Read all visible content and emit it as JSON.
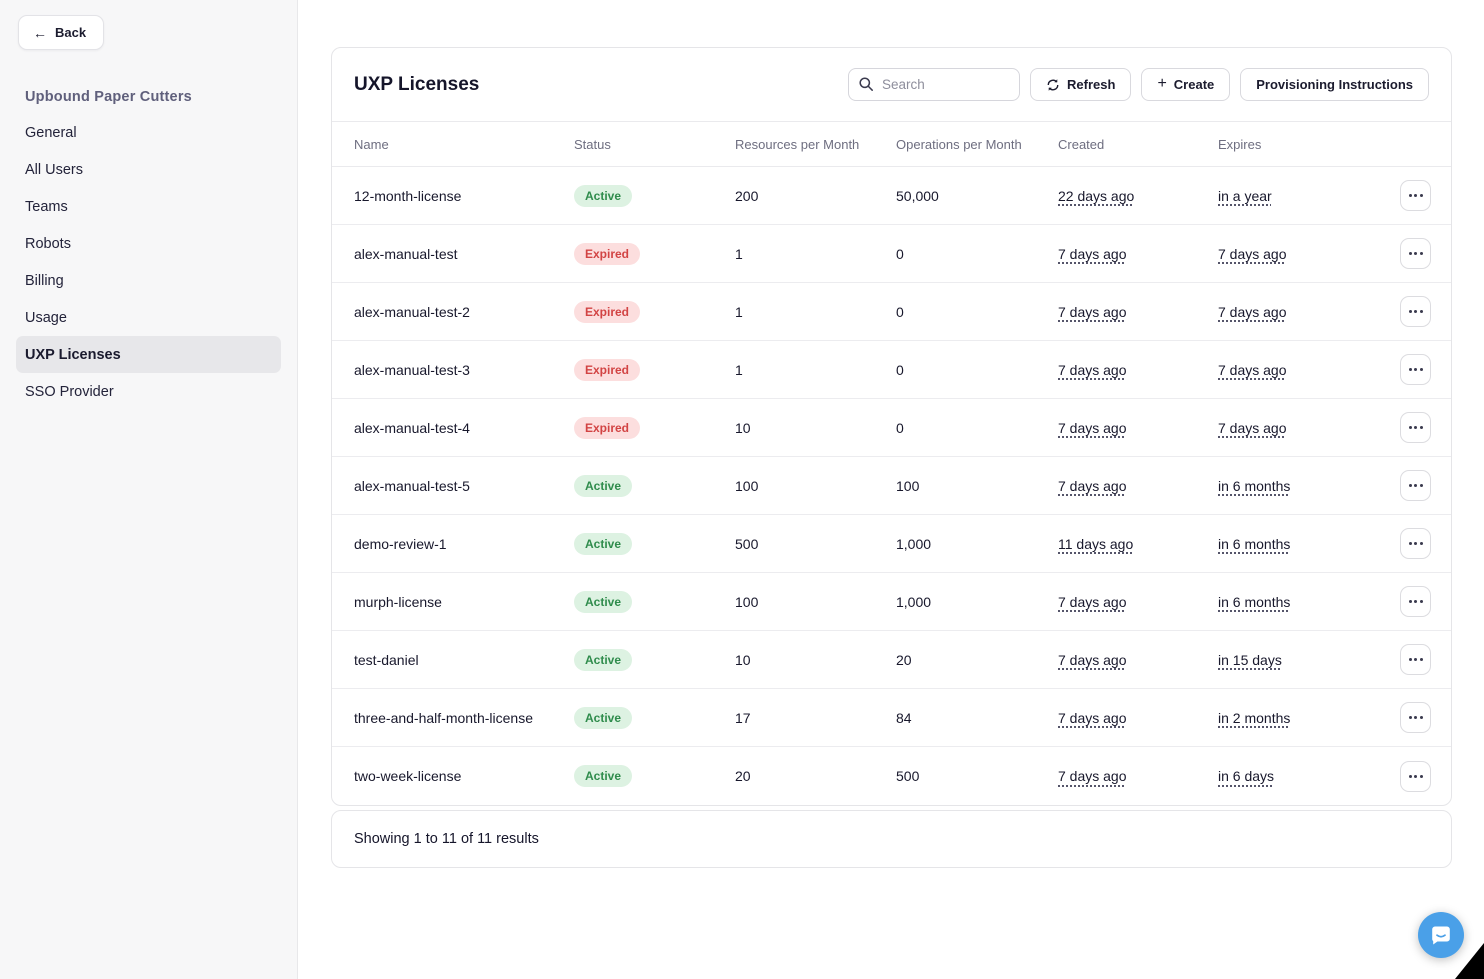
{
  "sidebar": {
    "back_label": "Back",
    "org_title": "Upbound Paper Cutters",
    "items": [
      {
        "label": "General",
        "selected": false
      },
      {
        "label": "All Users",
        "selected": false
      },
      {
        "label": "Teams",
        "selected": false
      },
      {
        "label": "Robots",
        "selected": false
      },
      {
        "label": "Billing",
        "selected": false
      },
      {
        "label": "Usage",
        "selected": false
      },
      {
        "label": "UXP Licenses",
        "selected": true
      },
      {
        "label": "SSO Provider",
        "selected": false
      }
    ]
  },
  "header": {
    "title": "UXP Licenses",
    "search_placeholder": "Search",
    "refresh_label": "Refresh",
    "create_label": "Create",
    "provisioning_label": "Provisioning Instructions"
  },
  "table": {
    "columns": [
      "Name",
      "Status",
      "Resources per Month",
      "Operations per Month",
      "Created",
      "Expires"
    ],
    "rows": [
      {
        "name": "12-month-license",
        "status": "Active",
        "resources": "200",
        "operations": "50,000",
        "created": "22 days ago",
        "expires": "in a year"
      },
      {
        "name": "alex-manual-test",
        "status": "Expired",
        "resources": "1",
        "operations": "0",
        "created": "7 days ago",
        "expires": "7 days ago"
      },
      {
        "name": "alex-manual-test-2",
        "status": "Expired",
        "resources": "1",
        "operations": "0",
        "created": "7 days ago",
        "expires": "7 days ago"
      },
      {
        "name": "alex-manual-test-3",
        "status": "Expired",
        "resources": "1",
        "operations": "0",
        "created": "7 days ago",
        "expires": "7 days ago"
      },
      {
        "name": "alex-manual-test-4",
        "status": "Expired",
        "resources": "10",
        "operations": "0",
        "created": "7 days ago",
        "expires": "7 days ago"
      },
      {
        "name": "alex-manual-test-5",
        "status": "Active",
        "resources": "100",
        "operations": "100",
        "created": "7 days ago",
        "expires": "in 6 months"
      },
      {
        "name": "demo-review-1",
        "status": "Active",
        "resources": "500",
        "operations": "1,000",
        "created": "11 days ago",
        "expires": "in 6 months"
      },
      {
        "name": "murph-license",
        "status": "Active",
        "resources": "100",
        "operations": "1,000",
        "created": "7 days ago",
        "expires": "in 6 months"
      },
      {
        "name": "test-daniel",
        "status": "Active",
        "resources": "10",
        "operations": "20",
        "created": "7 days ago",
        "expires": "in 15 days"
      },
      {
        "name": "three-and-half-month-license",
        "status": "Active",
        "resources": "17",
        "operations": "84",
        "created": "7 days ago",
        "expires": "in 2 months"
      },
      {
        "name": "two-week-license",
        "status": "Active",
        "resources": "20",
        "operations": "500",
        "created": "7 days ago",
        "expires": "in 6 days"
      }
    ],
    "footer": "Showing 1 to 11 of 11 results"
  },
  "colors": {
    "active_badge_bg": "#ddf2e2",
    "active_badge_text": "#2f8c4c",
    "expired_badge_bg": "#fcdede",
    "expired_badge_text": "#d24444",
    "chat_launcher_blue": "#4aa0e8",
    "org_title_text": "#60607c"
  },
  "icons": {
    "back_arrow": "←",
    "plus": "+"
  }
}
